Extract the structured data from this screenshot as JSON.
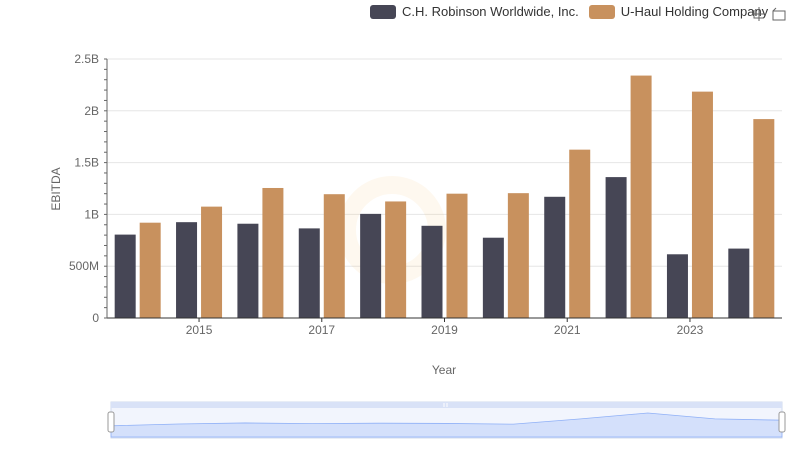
{
  "chart_data": {
    "type": "bar",
    "categories": [
      "2014",
      "2015",
      "2016",
      "2017",
      "2018",
      "2019",
      "2020",
      "2021",
      "2022",
      "2023",
      "2024"
    ],
    "x_tick_labels": [
      "2015",
      "2017",
      "2019",
      "2021",
      "2023"
    ],
    "series": [
      {
        "name": "C.H. Robinson Worldwide, Inc.",
        "color": "#464655",
        "values": [
          805000000,
          925000000,
          910000000,
          865000000,
          1005000000,
          890000000,
          775000000,
          1170000000,
          1360000000,
          615000000,
          670000000
        ]
      },
      {
        "name": "U-Haul Holding Company",
        "color": "#c8915e",
        "values": [
          920000000,
          1075000000,
          1255000000,
          1195000000,
          1125000000,
          1200000000,
          1205000000,
          1625000000,
          2340000000,
          2185000000,
          1920000000
        ]
      }
    ],
    "y_tick_labels": [
      "0",
      "500M",
      "1B",
      "1.5B",
      "2B",
      "2.5B"
    ],
    "y_tick_values": [
      0,
      500000000,
      1000000000,
      1500000000,
      2000000000,
      2500000000
    ],
    "ylim": [
      0,
      2500000000
    ],
    "xlabel": "Year",
    "ylabel": "EBITDA",
    "legend_position": "top-right",
    "grid": true
  },
  "toolbox": {
    "icons": [
      "zoom-icon",
      "restore-icon"
    ]
  }
}
